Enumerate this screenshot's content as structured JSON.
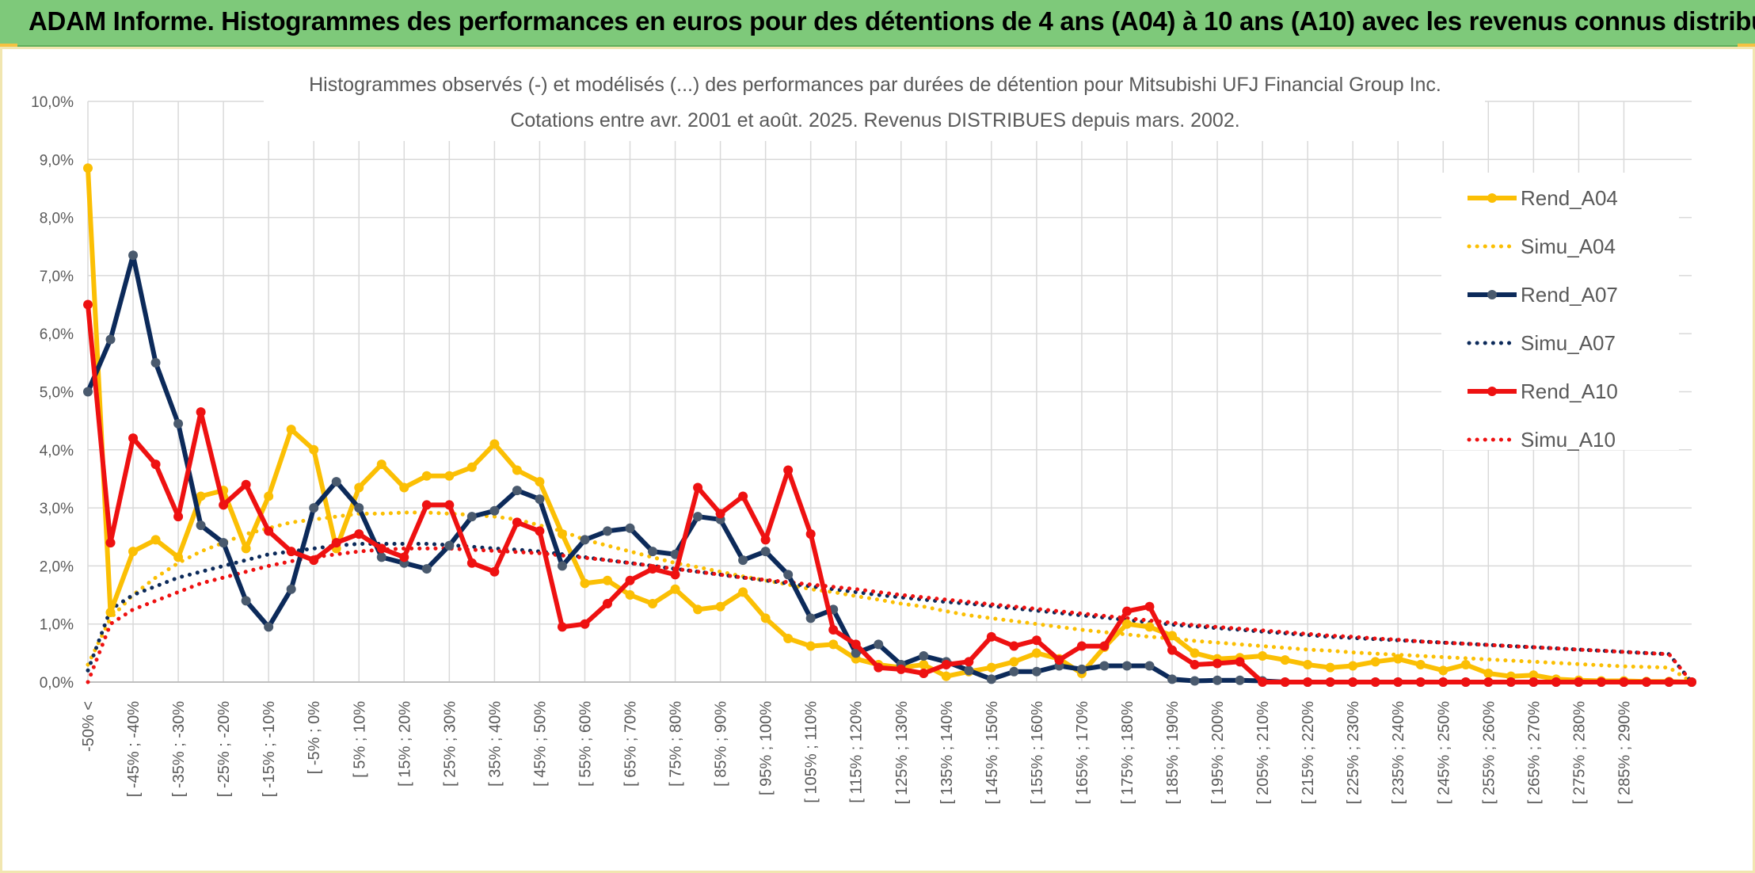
{
  "banner": {
    "title": "ADAM Informe. Histogrammes des performances en euros pour des détentions de 4 ans (A04) à 10 ans (A10) avec les revenus connus distribués"
  },
  "colors": {
    "banner_bg": "#7ec97a",
    "A04": "#fbbf04",
    "A07": "#0c2a5a",
    "A07_marker": "#4a5a6e",
    "A10": "#ee1111",
    "grid": "#d9d9d9"
  },
  "chart_data": {
    "type": "line",
    "title": "Histogrammes observés (-) et modélisés (...) des performances par durées de détention pour Mitsubishi UFJ Financial Group Inc.",
    "subtitle": "Cotations entre avr. 2001 et août. 2025. Revenus DISTRIBUES depuis mars. 2002.",
    "y_ticks": [
      "0,0%",
      "1,0%",
      "2,0%",
      "3,0%",
      "4,0%",
      "5,0%",
      "6,0%",
      "7,0%",
      "8,0%",
      "9,0%",
      "10,0%"
    ],
    "ylim": [
      0,
      10
    ],
    "x_tick_labels": [
      "-50% <",
      "[ -45% ; -40%",
      "[ -35% ; -30%",
      "[ -25% ; -20%",
      "[ -15% ; -10%",
      "[ -5% ; 0%",
      "[ 5% ; 10%",
      "[ 15% ; 20%",
      "[ 25% ; 30%",
      "[ 35% ; 40%",
      "[ 45% ; 50%",
      "[ 55% ; 60%",
      "[ 65% ; 70%",
      "[ 75% ; 80%",
      "[ 85% ; 90%",
      "[ 95% ; 100%",
      "[ 105% ; 110%",
      "[ 115% ; 120%",
      "[ 125% ; 130%",
      "[ 135% ; 140%",
      "[ 145% ; 150%",
      "[ 155% ; 160%",
      "[ 165% ; 170%",
      "[ 175% ; 180%",
      "[ 185% ; 190%",
      "[ 195% ; 200%",
      "[ 205% ; 210%",
      "[ 215% ; 220%",
      "[ 225% ; 230%",
      "[ 235% ; 240%",
      "[ 245% ; 250%",
      "[ 255% ; 260%",
      "[ 265% ; 270%",
      "[ 275% ; 280%",
      "[ 285% ; 290%"
    ],
    "legend_position": "right",
    "series": [
      {
        "name": "Rend_A04",
        "style": "solid",
        "color": "#fbbf04",
        "values": [
          8.85,
          1.2,
          2.25,
          2.45,
          2.15,
          3.2,
          3.3,
          2.3,
          3.2,
          4.35,
          4.0,
          2.3,
          3.35,
          3.75,
          3.35,
          3.55,
          3.55,
          3.7,
          4.1,
          3.65,
          3.45,
          2.55,
          1.7,
          1.75,
          1.5,
          1.35,
          1.6,
          1.25,
          1.3,
          1.55,
          1.1,
          0.75,
          0.62,
          0.65,
          0.4,
          0.3,
          0.25,
          0.3,
          0.1,
          0.18,
          0.25,
          0.35,
          0.5,
          0.4,
          0.15,
          0.6,
          1.0,
          0.95,
          0.8,
          0.5,
          0.4,
          0.42,
          0.45,
          0.38,
          0.3,
          0.25,
          0.28,
          0.35,
          0.4,
          0.3,
          0.2,
          0.3,
          0.15,
          0.1,
          0.12,
          0.05,
          0.03,
          0.02,
          0.02,
          0.01,
          0.01,
          0.0
        ]
      },
      {
        "name": "Simu_A04",
        "style": "dotted",
        "color": "#fbbf04",
        "values": [
          0.3,
          1.1,
          1.5,
          1.8,
          2.05,
          2.25,
          2.4,
          2.55,
          2.65,
          2.75,
          2.8,
          2.85,
          2.9,
          2.9,
          2.92,
          2.92,
          2.9,
          2.88,
          2.85,
          2.8,
          2.7,
          2.6,
          2.45,
          2.35,
          2.25,
          2.15,
          2.05,
          1.98,
          1.9,
          1.82,
          1.75,
          1.68,
          1.6,
          1.55,
          1.48,
          1.42,
          1.35,
          1.3,
          1.22,
          1.15,
          1.1,
          1.05,
          1.0,
          0.95,
          0.9,
          0.86,
          0.82,
          0.78,
          0.75,
          0.71,
          0.68,
          0.65,
          0.62,
          0.59,
          0.56,
          0.54,
          0.51,
          0.49,
          0.47,
          0.45,
          0.43,
          0.41,
          0.39,
          0.37,
          0.35,
          0.33,
          0.31,
          0.29,
          0.27,
          0.26,
          0.25,
          0.0
        ]
      },
      {
        "name": "Rend_A07",
        "style": "solid",
        "color": "#0c2a5a",
        "values": [
          5.0,
          5.9,
          7.35,
          5.5,
          4.45,
          2.7,
          2.4,
          1.4,
          0.95,
          1.6,
          3.0,
          3.45,
          3.0,
          2.15,
          2.05,
          1.95,
          2.35,
          2.85,
          2.95,
          3.3,
          3.15,
          2.0,
          2.45,
          2.6,
          2.65,
          2.25,
          2.2,
          2.85,
          2.8,
          2.1,
          2.25,
          1.85,
          1.1,
          1.25,
          0.5,
          0.65,
          0.3,
          0.45,
          0.35,
          0.2,
          0.05,
          0.18,
          0.18,
          0.28,
          0.22,
          0.28,
          0.28,
          0.28,
          0.05,
          0.02,
          0.03,
          0.03,
          0.02,
          0.0,
          0.0,
          0.0,
          0.0,
          0.0,
          0.0,
          0.0,
          0.0,
          0.0,
          0.0,
          0.0,
          0.0,
          0.0,
          0.0,
          0.0,
          0.0,
          0.0,
          0.0,
          0.0
        ]
      },
      {
        "name": "Simu_A07",
        "style": "dotted",
        "color": "#0c2a5a",
        "values": [
          0.2,
          1.25,
          1.5,
          1.65,
          1.8,
          1.9,
          2.0,
          2.1,
          2.2,
          2.25,
          2.3,
          2.35,
          2.38,
          2.38,
          2.38,
          2.38,
          2.36,
          2.33,
          2.3,
          2.28,
          2.25,
          2.2,
          2.15,
          2.1,
          2.05,
          2.0,
          1.95,
          1.9,
          1.85,
          1.8,
          1.75,
          1.7,
          1.65,
          1.6,
          1.55,
          1.5,
          1.46,
          1.42,
          1.38,
          1.35,
          1.31,
          1.27,
          1.23,
          1.19,
          1.15,
          1.11,
          1.07,
          1.03,
          0.99,
          0.96,
          0.93,
          0.9,
          0.87,
          0.84,
          0.81,
          0.78,
          0.76,
          0.74,
          0.72,
          0.7,
          0.68,
          0.66,
          0.64,
          0.62,
          0.6,
          0.58,
          0.56,
          0.54,
          0.52,
          0.5,
          0.48,
          0.0
        ]
      },
      {
        "name": "Rend_A10",
        "style": "solid",
        "color": "#ee1111",
        "values": [
          6.5,
          2.4,
          4.2,
          3.75,
          2.85,
          4.65,
          3.05,
          3.4,
          2.6,
          2.25,
          2.1,
          2.4,
          2.55,
          2.3,
          2.15,
          3.05,
          3.05,
          2.05,
          1.9,
          2.75,
          2.6,
          0.95,
          1.0,
          1.35,
          1.75,
          1.95,
          1.85,
          3.35,
          2.9,
          3.2,
          2.45,
          3.65,
          2.55,
          0.9,
          0.65,
          0.25,
          0.22,
          0.15,
          0.3,
          0.35,
          0.78,
          0.62,
          0.72,
          0.38,
          0.62,
          0.62,
          1.22,
          1.3,
          0.55,
          0.3,
          0.32,
          0.35,
          0.0,
          0.0,
          0.0,
          0.0,
          0.0,
          0.0,
          0.0,
          0.0,
          0.0,
          0.0,
          0.0,
          0.0,
          0.0,
          0.0,
          0.0,
          0.0,
          0.0,
          0.0,
          0.0,
          0.0
        ]
      },
      {
        "name": "Simu_A10",
        "style": "dotted",
        "color": "#ee1111",
        "values": [
          0.0,
          1.0,
          1.25,
          1.4,
          1.55,
          1.7,
          1.8,
          1.9,
          2.0,
          2.08,
          2.15,
          2.2,
          2.25,
          2.28,
          2.3,
          2.3,
          2.3,
          2.28,
          2.26,
          2.24,
          2.22,
          2.18,
          2.14,
          2.1,
          2.05,
          2.0,
          1.95,
          1.9,
          1.85,
          1.8,
          1.76,
          1.72,
          1.68,
          1.64,
          1.6,
          1.55,
          1.5,
          1.46,
          1.42,
          1.38,
          1.34,
          1.3,
          1.26,
          1.22,
          1.18,
          1.14,
          1.1,
          1.06,
          1.02,
          0.98,
          0.95,
          0.92,
          0.89,
          0.86,
          0.83,
          0.8,
          0.78,
          0.75,
          0.73,
          0.7,
          0.68,
          0.66,
          0.64,
          0.62,
          0.6,
          0.58,
          0.56,
          0.54,
          0.52,
          0.5,
          0.48,
          0.0
        ]
      }
    ]
  }
}
